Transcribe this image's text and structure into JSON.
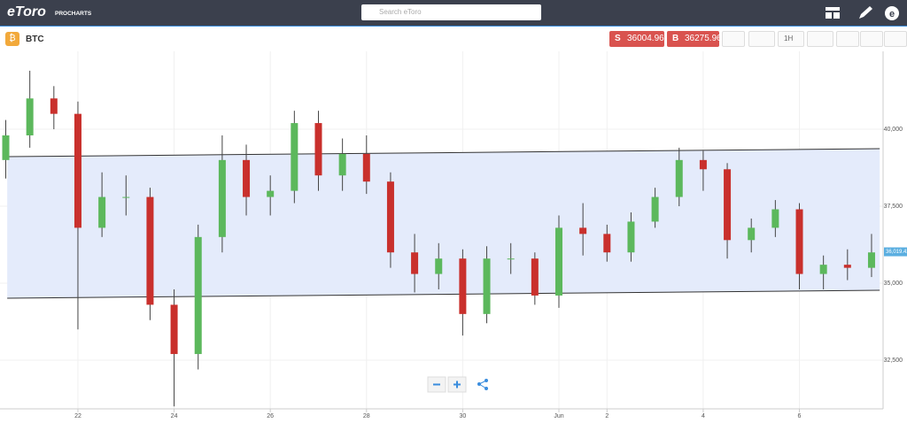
{
  "header": {
    "logo": "eToro",
    "logo_sub": "PROCHARTS",
    "search_placeholder": "Search eToro"
  },
  "toolbar": {
    "symbol": "BTC",
    "sell_label": "S",
    "sell_price": "36004.96",
    "buy_label": "B",
    "buy_price": "36275.96",
    "interval": "1H"
  },
  "chart_data": {
    "type": "candlestick",
    "x": [
      20.5,
      21,
      21.5,
      22,
      22.5,
      23,
      23.5,
      24,
      24.5,
      25,
      25.5,
      26,
      26.5,
      27,
      27.5,
      28,
      28.5,
      29,
      29.5,
      30,
      30.5,
      31,
      31.5,
      32,
      32.5,
      33,
      33.5,
      34,
      34.5,
      35,
      35.5,
      36,
      36.5,
      37,
      37.5,
      38,
      38.5
    ],
    "open": [
      39000,
      39800,
      41000,
      40500,
      36800,
      37800,
      37800,
      34300,
      32700,
      36500,
      39000,
      37800,
      38000,
      40200,
      38500,
      39200,
      38300,
      36000,
      35300,
      35800,
      34000,
      35800,
      35800,
      34600,
      36800,
      36600,
      36000,
      37000,
      37800,
      39000,
      38700,
      36400,
      36800,
      37400,
      35300,
      35600,
      35500
    ],
    "high": [
      40300,
      41900,
      41400,
      40900,
      38600,
      38500,
      38100,
      34800,
      36900,
      39800,
      39500,
      38500,
      40600,
      40600,
      39700,
      39800,
      38600,
      36600,
      36300,
      36100,
      36200,
      36300,
      36000,
      37200,
      37600,
      36900,
      37300,
      38100,
      39400,
      39300,
      38900,
      37100,
      37700,
      37600,
      35900,
      36100,
      36600
    ],
    "low": [
      38400,
      39400,
      40000,
      33500,
      36500,
      37200,
      33800,
      31000,
      32200,
      36000,
      37200,
      37200,
      37600,
      38000,
      38000,
      37900,
      35500,
      34700,
      34800,
      33300,
      33700,
      35300,
      34300,
      34200,
      35900,
      35700,
      35700,
      36800,
      37500,
      38000,
      35800,
      36000,
      36500,
      34800,
      34800,
      35100,
      35200
    ],
    "close": [
      39800,
      41000,
      40500,
      36800,
      37800,
      37800,
      34300,
      32700,
      36500,
      39000,
      37800,
      38000,
      40200,
      38500,
      39200,
      38300,
      36000,
      35300,
      35800,
      34000,
      35800,
      35800,
      34600,
      36800,
      36600,
      36000,
      37000,
      37800,
      39000,
      38700,
      36400,
      36800,
      37400,
      35300,
      35600,
      35500,
      36000
    ],
    "up_color": "#5cb85c",
    "down_color": "#c9302c",
    "channel_color": "#e4ebfb",
    "xlim": [
      20.38,
      38.74
    ],
    "xticks": [
      22,
      24,
      26,
      28,
      30,
      {
        "value": 32,
        "label": "Jun"
      },
      {
        "value": 33,
        "label": "2"
      },
      {
        "value": 35,
        "label": "4"
      },
      {
        "value": 37,
        "label": "6"
      }
    ],
    "ylim": [
      30920,
      42530
    ],
    "yticks": [
      {
        "value": 32500,
        "label": "32,500"
      },
      {
        "value": 35000,
        "label": "35,000"
      },
      {
        "value": 37500,
        "label": "37,500"
      },
      {
        "value": 40000,
        "label": "40,000"
      }
    ],
    "last_price": {
      "value": 36019.42,
      "label": "36,019.42"
    },
    "channel": {
      "x": [
        20.53,
        38.67
      ],
      "upper": [
        39109,
        39368
      ],
      "lower": [
        34512,
        34770
      ]
    },
    "grid": true
  }
}
